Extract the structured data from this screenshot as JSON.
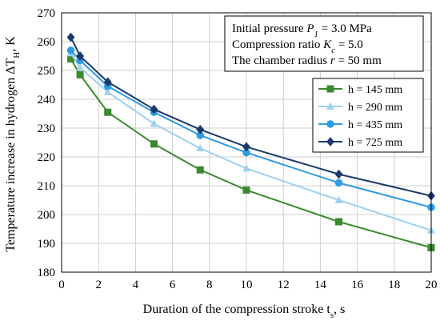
{
  "chart_data": {
    "type": "line",
    "xlabel": "Duration of the compression stroke t",
    "xlabel_sub": "s",
    "xlabel_unit": ", s",
    "ylabel": "Temperature increase in hydrogen ΔT",
    "ylabel_sub": "H",
    "ylabel_unit": ", K",
    "xlim": [
      0,
      20
    ],
    "ylim": [
      180,
      270
    ],
    "xticks": [
      0,
      2,
      4,
      6,
      8,
      10,
      12,
      14,
      16,
      18,
      20
    ],
    "yticks": [
      180,
      190,
      200,
      210,
      220,
      230,
      240,
      250,
      260,
      270
    ],
    "grid": true,
    "legend_position": "right",
    "annotations": [
      {
        "pre": "Initial pressure ",
        "var": "P",
        "sub": "1",
        "post": " = 3.0 MPa"
      },
      {
        "pre": "Compression ratio ",
        "var": "K",
        "sub": "c",
        "post": " = 5.0"
      },
      {
        "pre": "The chamber radius ",
        "var": "r",
        "sub": "",
        "post": " = 50 mm"
      }
    ],
    "series": [
      {
        "name": "h = 145 mm",
        "color": "#3a8a2e",
        "marker": "square",
        "x": [
          0.5,
          1,
          2.5,
          5,
          7.5,
          10,
          15,
          20
        ],
        "y": [
          254,
          248.5,
          235.5,
          224.5,
          215.5,
          208.5,
          197.5,
          188.5
        ]
      },
      {
        "name": "h = 290 mm",
        "color": "#9fd0ef",
        "marker": "triangle",
        "x": [
          0.5,
          1,
          2.5,
          5,
          7.5,
          10,
          15,
          20
        ],
        "y": [
          256,
          251,
          242.5,
          231.5,
          223,
          216,
          205,
          194.5
        ]
      },
      {
        "name": "h = 435 mm",
        "color": "#2f9be0",
        "marker": "circle",
        "x": [
          0.5,
          1,
          2.5,
          5,
          7.5,
          10,
          15,
          20
        ],
        "y": [
          257,
          253.5,
          244.5,
          235.5,
          227.5,
          221.5,
          211,
          202.5
        ]
      },
      {
        "name": "h = 725 mm",
        "color": "#1b3a6b",
        "marker": "diamond",
        "x": [
          0.5,
          1,
          2.5,
          5,
          7.5,
          10,
          15,
          20
        ],
        "y": [
          261.5,
          255,
          246,
          236.5,
          229.5,
          223.5,
          214,
          206.5
        ]
      }
    ]
  }
}
